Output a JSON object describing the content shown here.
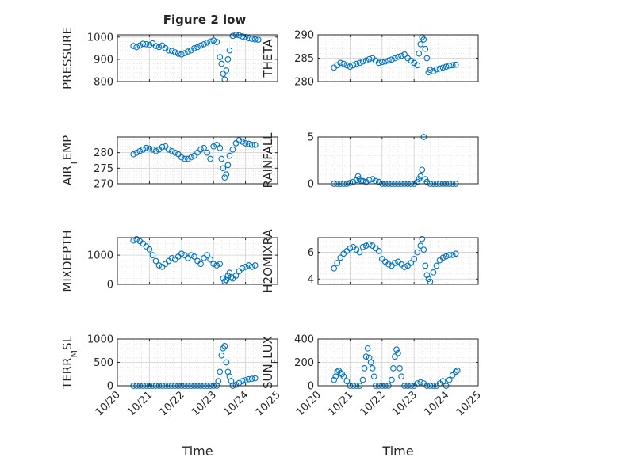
{
  "figure_title": "Figure 2 low",
  "chart_data": [
    {
      "type": "scatter",
      "ylabel": "PRESSURE",
      "xlim": [
        "10/20",
        "10/25"
      ],
      "ylim": [
        800,
        1010
      ],
      "yticks": [
        800,
        900,
        1000
      ],
      "xticks": [
        "10/20",
        "10/21",
        "10/22",
        "10/23",
        "10/24",
        "10/25"
      ],
      "show_xticklabels": false,
      "grid": true,
      "marker_color": "#0072BD",
      "series": [
        {
          "x": [
            20.5,
            20.6,
            20.7,
            20.8,
            20.9,
            21.0,
            21.1,
            21.2,
            21.3,
            21.4,
            21.5,
            21.6,
            21.7,
            21.8,
            21.9,
            22.0,
            22.1,
            22.2,
            22.3,
            22.4,
            22.5,
            22.6,
            22.7,
            22.8,
            22.9,
            23.0,
            23.1,
            23.2,
            23.25,
            23.3,
            23.35,
            23.4,
            23.45,
            23.5,
            23.6,
            23.7,
            23.8,
            23.9,
            24.0,
            24.1,
            24.2,
            24.3,
            24.4
          ],
          "y": [
            960,
            955,
            962,
            970,
            968,
            965,
            972,
            960,
            955,
            962,
            950,
            940,
            938,
            932,
            925,
            922,
            928,
            935,
            940,
            950,
            955,
            962,
            968,
            975,
            980,
            985,
            978,
            910,
            880,
            835,
            810,
            850,
            900,
            940,
            1005,
            1010,
            1008,
            1003,
            1000,
            995,
            992,
            990,
            988
          ]
        }
      ]
    },
    {
      "type": "scatter",
      "ylabel": "THETA",
      "xlim": [
        "10/20",
        "10/25"
      ],
      "ylim": [
        280,
        290
      ],
      "yticks": [
        280,
        285,
        290
      ],
      "xticks": [
        "10/20",
        "10/21",
        "10/22",
        "10/23",
        "10/24",
        "10/25"
      ],
      "show_xticklabels": false,
      "grid": true,
      "marker_color": "#0072BD",
      "series": [
        {
          "x": [
            20.5,
            20.6,
            20.7,
            20.8,
            20.9,
            21.0,
            21.1,
            21.2,
            21.3,
            21.4,
            21.5,
            21.6,
            21.7,
            21.8,
            21.9,
            22.0,
            22.1,
            22.2,
            22.3,
            22.4,
            22.5,
            22.6,
            22.7,
            22.8,
            22.9,
            23.0,
            23.1,
            23.15,
            23.2,
            23.25,
            23.3,
            23.35,
            23.4,
            23.45,
            23.5,
            23.6,
            23.7,
            23.8,
            23.9,
            24.0,
            24.1,
            24.2,
            24.3
          ],
          "y": [
            283,
            283.5,
            284,
            283.8,
            283.5,
            283.2,
            283.5,
            283.8,
            284,
            284.3,
            284.5,
            284.8,
            285,
            284.5,
            284,
            284.2,
            284.3,
            284.5,
            284.7,
            285,
            285.3,
            285.5,
            285.8,
            285,
            284.5,
            284,
            283.5,
            286,
            288,
            289.5,
            289,
            287,
            285,
            282,
            282.5,
            282.2,
            282.6,
            282.8,
            283,
            283.2,
            283.4,
            283.5,
            283.6
          ]
        }
      ]
    },
    {
      "type": "scatter",
      "ylabel": "AIR_TEMP",
      "xlim": [
        "10/20",
        "10/25"
      ],
      "ylim": [
        270,
        285
      ],
      "yticks": [
        270,
        275,
        280
      ],
      "xticks": [
        "10/20",
        "10/21",
        "10/22",
        "10/23",
        "10/24",
        "10/25"
      ],
      "show_xticklabels": false,
      "grid": true,
      "marker_color": "#0072BD",
      "series": [
        {
          "x": [
            20.5,
            20.6,
            20.7,
            20.8,
            20.9,
            21.0,
            21.1,
            21.2,
            21.3,
            21.4,
            21.5,
            21.6,
            21.7,
            21.8,
            21.9,
            22.0,
            22.1,
            22.2,
            22.3,
            22.4,
            22.5,
            22.6,
            22.7,
            22.8,
            22.9,
            23.0,
            23.1,
            23.2,
            23.25,
            23.3,
            23.35,
            23.4,
            23.45,
            23.5,
            23.6,
            23.7,
            23.8,
            23.9,
            24.0,
            24.1,
            24.2,
            24.3
          ],
          "y": [
            279.5,
            280,
            280.5,
            281,
            281.5,
            281.3,
            281,
            280.5,
            281,
            281.8,
            282,
            281,
            280.5,
            280,
            279.5,
            278.5,
            278,
            278,
            278.5,
            279,
            280,
            281,
            281.5,
            280,
            278,
            282,
            282.5,
            281.5,
            278,
            275,
            272,
            273,
            276,
            279,
            281,
            283,
            284,
            283.5,
            283,
            282.8,
            282.5,
            282.5
          ]
        }
      ]
    },
    {
      "type": "scatter",
      "ylabel": "RAINFALL",
      "xlim": [
        "10/20",
        "10/25"
      ],
      "ylim": [
        0,
        5
      ],
      "yticks": [
        0,
        5
      ],
      "xticks": [
        "10/20",
        "10/21",
        "10/22",
        "10/23",
        "10/24",
        "10/25"
      ],
      "show_xticklabels": false,
      "grid": true,
      "marker_color": "#0072BD",
      "series": [
        {
          "x": [
            20.5,
            20.6,
            20.7,
            20.8,
            20.9,
            21.0,
            21.1,
            21.2,
            21.25,
            21.3,
            21.35,
            21.4,
            21.5,
            21.6,
            21.7,
            21.8,
            21.9,
            22.0,
            22.1,
            22.2,
            22.3,
            22.4,
            22.5,
            22.6,
            22.7,
            22.8,
            22.9,
            23.0,
            23.1,
            23.15,
            23.2,
            23.25,
            23.3,
            23.35,
            23.4,
            23.5,
            23.6,
            23.7,
            23.8,
            23.9,
            24.0,
            24.1,
            24.2,
            24.3
          ],
          "y": [
            0,
            0,
            0,
            0,
            0,
            0.1,
            0.2,
            0.4,
            0.8,
            0.5,
            0.3,
            0.3,
            0.2,
            0.4,
            0.5,
            0.3,
            0.2,
            0,
            0,
            0,
            0,
            0,
            0,
            0,
            0,
            0,
            0,
            0,
            0.2,
            0.5,
            0.8,
            1.5,
            5.0,
            0.5,
            0.2,
            0,
            0,
            0,
            0,
            0,
            0,
            0,
            0,
            0
          ]
        }
      ]
    },
    {
      "type": "scatter",
      "ylabel": "MIXDEPTH",
      "xlim": [
        "10/20",
        "10/25"
      ],
      "ylim": [
        0,
        1600
      ],
      "yticks": [
        0,
        1000
      ],
      "xticks": [
        "10/20",
        "10/21",
        "10/22",
        "10/23",
        "10/24",
        "10/25"
      ],
      "show_xticklabels": false,
      "grid": true,
      "marker_color": "#0072BD",
      "series": [
        {
          "x": [
            20.5,
            20.6,
            20.7,
            20.8,
            20.9,
            21.0,
            21.1,
            21.2,
            21.3,
            21.4,
            21.5,
            21.6,
            21.7,
            21.8,
            21.9,
            22.0,
            22.1,
            22.2,
            22.3,
            22.4,
            22.5,
            22.6,
            22.7,
            22.8,
            22.9,
            23.0,
            23.1,
            23.2,
            23.3,
            23.35,
            23.4,
            23.45,
            23.5,
            23.55,
            23.6,
            23.7,
            23.8,
            23.9,
            24.0,
            24.1,
            24.2,
            24.3
          ],
          "y": [
            1500,
            1550,
            1480,
            1400,
            1300,
            1200,
            1000,
            800,
            650,
            600,
            700,
            800,
            900,
            850,
            950,
            1050,
            1000,
            900,
            1000,
            950,
            800,
            700,
            900,
            1000,
            850,
            700,
            650,
            700,
            200,
            100,
            150,
            300,
            400,
            250,
            200,
            300,
            450,
            550,
            600,
            650,
            600,
            650
          ]
        }
      ]
    },
    {
      "type": "scatter",
      "ylabel": "H2OMIXRA",
      "xlim": [
        "10/20",
        "10/25"
      ],
      "ylim": [
        3.6,
        7.1
      ],
      "yticks": [
        4,
        6
      ],
      "xticks": [
        "10/20",
        "10/21",
        "10/22",
        "10/23",
        "10/24",
        "10/25"
      ],
      "show_xticklabels": false,
      "grid": true,
      "marker_color": "#0072BD",
      "series": [
        {
          "x": [
            20.5,
            20.6,
            20.7,
            20.8,
            20.9,
            21.0,
            21.1,
            21.2,
            21.3,
            21.4,
            21.5,
            21.6,
            21.7,
            21.8,
            21.9,
            22.0,
            22.1,
            22.2,
            22.3,
            22.4,
            22.5,
            22.6,
            22.7,
            22.8,
            22.9,
            23.0,
            23.1,
            23.2,
            23.25,
            23.3,
            23.35,
            23.4,
            23.45,
            23.5,
            23.6,
            23.7,
            23.8,
            23.9,
            24.0,
            24.1,
            24.2,
            24.3
          ],
          "y": [
            4.8,
            5.2,
            5.6,
            5.9,
            6.1,
            6.3,
            6.4,
            6.2,
            6.0,
            6.4,
            6.5,
            6.6,
            6.5,
            6.3,
            6.1,
            5.5,
            5.3,
            5.1,
            5.0,
            5.2,
            5.3,
            5.1,
            4.9,
            5.0,
            5.2,
            5.5,
            6.0,
            6.5,
            7.0,
            6.2,
            5.0,
            4.3,
            4.0,
            3.8,
            4.5,
            5.0,
            5.4,
            5.6,
            5.7,
            5.8,
            5.8,
            5.9
          ]
        }
      ]
    },
    {
      "type": "scatter",
      "ylabel": "TERR_MSL",
      "xlabel": "Time",
      "xlim": [
        "10/20",
        "10/25"
      ],
      "ylim": [
        0,
        1000
      ],
      "yticks": [
        0,
        500,
        1000
      ],
      "xticks": [
        "10/20",
        "10/21",
        "10/22",
        "10/23",
        "10/24",
        "10/25"
      ],
      "show_xticklabels": true,
      "grid": true,
      "marker_color": "#0072BD",
      "series": [
        {
          "x": [
            20.5,
            20.6,
            20.7,
            20.8,
            20.9,
            21.0,
            21.1,
            21.2,
            21.3,
            21.4,
            21.5,
            21.6,
            21.7,
            21.8,
            21.9,
            22.0,
            22.1,
            22.2,
            22.3,
            22.4,
            22.5,
            22.6,
            22.7,
            22.8,
            22.9,
            23.0,
            23.1,
            23.15,
            23.2,
            23.25,
            23.3,
            23.35,
            23.4,
            23.45,
            23.5,
            23.55,
            23.6,
            23.7,
            23.8,
            23.9,
            24.0,
            24.1,
            24.2,
            24.3
          ],
          "y": [
            0,
            0,
            0,
            0,
            0,
            0,
            0,
            0,
            0,
            0,
            0,
            0,
            0,
            0,
            0,
            0,
            0,
            0,
            0,
            0,
            0,
            0,
            0,
            0,
            0,
            0,
            0,
            100,
            300,
            650,
            800,
            850,
            500,
            300,
            200,
            100,
            0,
            20,
            60,
            100,
            120,
            140,
            150,
            160
          ]
        }
      ]
    },
    {
      "type": "scatter",
      "ylabel": "SUN_FLUX",
      "xlabel": "Time",
      "xlim": [
        "10/20",
        "10/25"
      ],
      "ylim": [
        0,
        400
      ],
      "yticks": [
        0,
        200,
        400
      ],
      "xticks": [
        "10/20",
        "10/21",
        "10/22",
        "10/23",
        "10/24",
        "10/25"
      ],
      "show_xticklabels": true,
      "grid": true,
      "marker_color": "#0072BD",
      "series": [
        {
          "x": [
            20.5,
            20.55,
            20.6,
            20.65,
            20.7,
            20.75,
            20.8,
            20.9,
            21.0,
            21.1,
            21.2,
            21.3,
            21.4,
            21.45,
            21.5,
            21.55,
            21.6,
            21.65,
            21.7,
            21.75,
            21.8,
            21.9,
            22.0,
            22.1,
            22.2,
            22.3,
            22.35,
            22.4,
            22.45,
            22.5,
            22.55,
            22.6,
            22.7,
            22.8,
            22.9,
            23.0,
            23.1,
            23.2,
            23.3,
            23.4,
            23.5,
            23.6,
            23.7,
            23.8,
            23.9,
            24.0,
            24.1,
            24.2,
            24.3,
            24.35
          ],
          "y": [
            50,
            80,
            120,
            130,
            110,
            100,
            80,
            40,
            0,
            0,
            0,
            0,
            50,
            150,
            250,
            320,
            240,
            200,
            150,
            80,
            0,
            0,
            0,
            0,
            0,
            50,
            150,
            250,
            310,
            280,
            150,
            80,
            0,
            0,
            0,
            0,
            20,
            30,
            20,
            0,
            0,
            0,
            0,
            20,
            40,
            0,
            50,
            90,
            120,
            130
          ]
        }
      ]
    }
  ]
}
